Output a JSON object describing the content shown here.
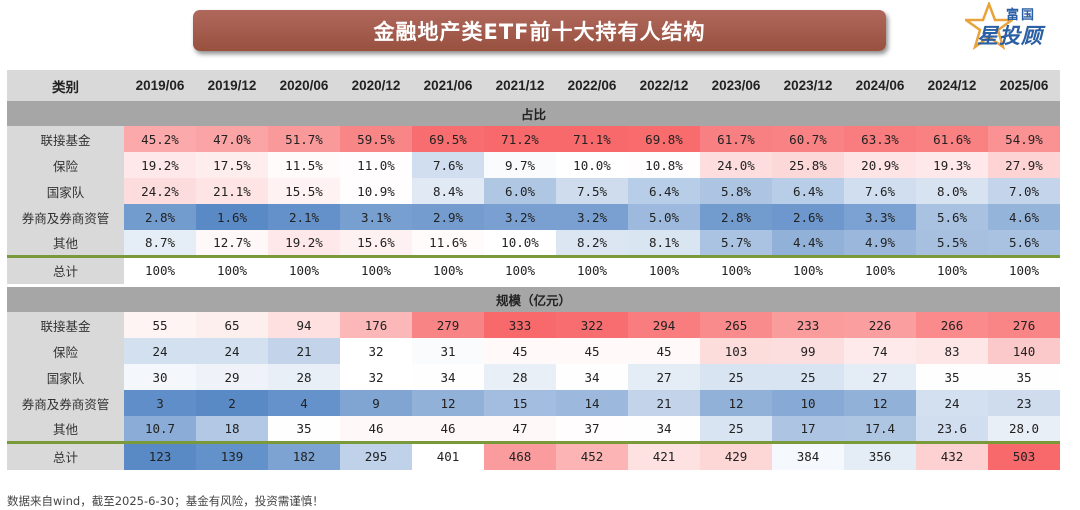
{
  "header": {
    "title": "金融地产类ETF前十大持有人结构",
    "logo_top": "富国",
    "logo_main": "星投顾"
  },
  "chart_data": {
    "type": "table",
    "corner_label": "类别",
    "columns": [
      "2019/06",
      "2019/12",
      "2020/06",
      "2020/12",
      "2021/06",
      "2021/12",
      "2022/06",
      "2022/12",
      "2023/06",
      "2023/12",
      "2024/06",
      "2024/12",
      "2025/06"
    ],
    "sections": [
      {
        "title": "占比",
        "rows": [
          {
            "label": "联接基金",
            "values": [
              "45.2%",
              "47.0%",
              "51.7%",
              "59.5%",
              "69.5%",
              "71.2%",
              "71.1%",
              "69.8%",
              "61.7%",
              "60.7%",
              "63.3%",
              "61.6%",
              "54.9%"
            ]
          },
          {
            "label": "保险",
            "values": [
              "19.2%",
              "17.5%",
              "11.5%",
              "11.0%",
              "7.6%",
              "9.7%",
              "10.0%",
              "10.8%",
              "24.0%",
              "25.8%",
              "20.9%",
              "19.3%",
              "27.9%"
            ]
          },
          {
            "label": "国家队",
            "values": [
              "24.2%",
              "21.1%",
              "15.5%",
              "10.9%",
              "8.4%",
              "6.0%",
              "7.5%",
              "6.4%",
              "5.8%",
              "6.4%",
              "7.6%",
              "8.0%",
              "7.0%"
            ]
          },
          {
            "label": "券商及券商资管",
            "values": [
              "2.8%",
              "1.6%",
              "2.1%",
              "3.1%",
              "2.9%",
              "3.2%",
              "3.2%",
              "5.0%",
              "2.8%",
              "2.6%",
              "3.3%",
              "5.6%",
              "4.6%"
            ]
          },
          {
            "label": "其他",
            "values": [
              "8.7%",
              "12.7%",
              "19.2%",
              "15.6%",
              "11.6%",
              "10.0%",
              "8.2%",
              "8.1%",
              "5.7%",
              "4.4%",
              "4.9%",
              "5.5%",
              "5.6%"
            ]
          }
        ],
        "total": {
          "label": "总计",
          "values": [
            "100%",
            "100%",
            "100%",
            "100%",
            "100%",
            "100%",
            "100%",
            "100%",
            "100%",
            "100%",
            "100%",
            "100%",
            "100%"
          ]
        }
      },
      {
        "title": "规模（亿元）",
        "rows": [
          {
            "label": "联接基金",
            "values": [
              "55",
              "65",
              "94",
              "176",
              "279",
              "333",
              "322",
              "294",
              "265",
              "233",
              "226",
              "266",
              "276"
            ]
          },
          {
            "label": "保险",
            "values": [
              "24",
              "24",
              "21",
              "32",
              "31",
              "45",
              "45",
              "45",
              "103",
              "99",
              "74",
              "83",
              "140"
            ]
          },
          {
            "label": "国家队",
            "values": [
              "30",
              "29",
              "28",
              "32",
              "34",
              "28",
              "34",
              "27",
              "25",
              "25",
              "27",
              "35",
              "35"
            ]
          },
          {
            "label": "券商及券商资管",
            "values": [
              "3",
              "2",
              "4",
              "9",
              "12",
              "15",
              "14",
              "21",
              "12",
              "10",
              "12",
              "24",
              "23"
            ]
          },
          {
            "label": "其他",
            "values": [
              "10.7",
              "18",
              "35",
              "46",
              "46",
              "47",
              "37",
              "34",
              "25",
              "17",
              "17.4",
              "23.6",
              "28.0"
            ]
          }
        ],
        "total": {
          "label": "总计",
          "values": [
            "123",
            "139",
            "182",
            "295",
            "401",
            "468",
            "452",
            "421",
            "429",
            "384",
            "356",
            "432",
            "503"
          ]
        }
      }
    ]
  },
  "footer": {
    "note": "数据来自wind，截至2025-6-30；基金有风险，投资需谨慎！"
  },
  "colors": {
    "banner": "#a55c4a",
    "high": "#f8696b",
    "mid": "#ffffff",
    "low": "#5a8ac6",
    "section_bar": "#a6a6a6",
    "header_bg": "#d9d9d9",
    "total_line": "#7a9a3a"
  }
}
